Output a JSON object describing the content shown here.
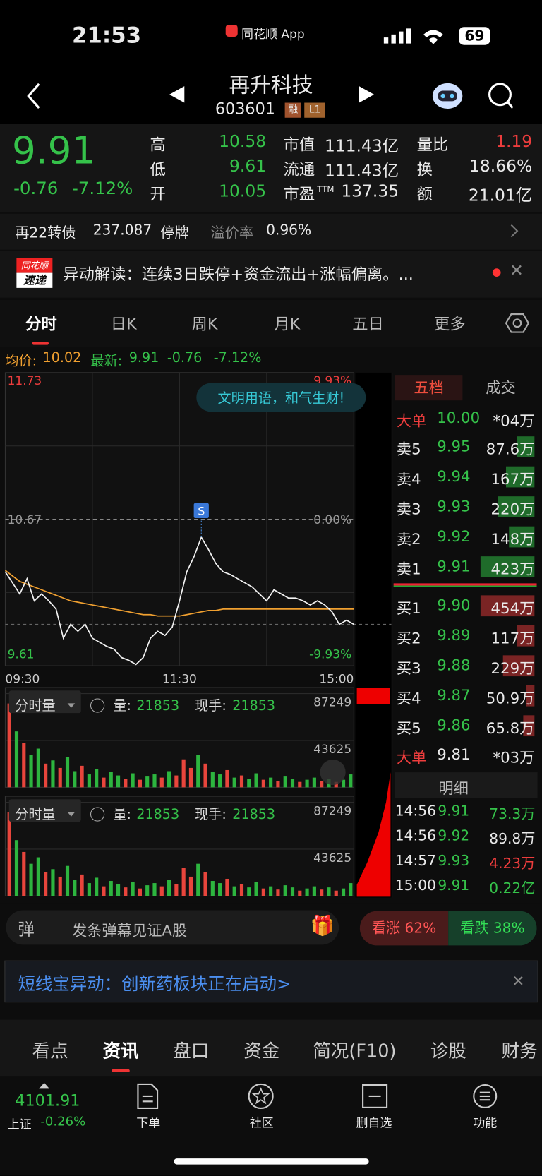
{
  "status": {
    "time": "21:53",
    "app": "同花顺 App",
    "battery": "69"
  },
  "header": {
    "name": "再升科技",
    "code": "603601",
    "badges": [
      "融",
      "L1"
    ]
  },
  "quote": {
    "price": "9.91",
    "change": "-0.76",
    "pct": "-7.12%",
    "ttm": "TTM",
    "stats": [
      [
        "高",
        "10.58"
      ],
      [
        "低",
        "9.61"
      ],
      [
        "开",
        "10.05"
      ],
      [
        "市值",
        "111.43亿"
      ],
      [
        "流通",
        "111.43亿"
      ],
      [
        "市盈",
        "137.35"
      ],
      [
        "量比",
        "1.19"
      ],
      [
        "换",
        "18.66%"
      ],
      [
        "额",
        "21.01亿"
      ]
    ]
  },
  "bond": {
    "name": "再22转债",
    "price": "237.087",
    "status": "停牌",
    "premium_label": "溢价率",
    "premium": "0.96%"
  },
  "alert": {
    "badge_top": "同花顺",
    "badge_bottom": "速递",
    "text": "异动解读：连续3日跌停+资金流出+涨幅偏离。..."
  },
  "tabs": [
    "分时",
    "日K",
    "周K",
    "月K",
    "五日",
    "更多"
  ],
  "info": {
    "avg_label": "均价:",
    "avg": "10.02",
    "last_label": "最新:",
    "last": "9.91",
    "change": "-0.76",
    "pct": "-7.12%"
  },
  "chart_data": [
    {
      "type": "line",
      "x": [
        0,
        5,
        10,
        15,
        20,
        25,
        30,
        35,
        40,
        45,
        50,
        55,
        60,
        65,
        70,
        75,
        80,
        85,
        90,
        95,
        100,
        105,
        110,
        115,
        120,
        125,
        130,
        135,
        140,
        145,
        150,
        155,
        160,
        165,
        170,
        175,
        180,
        185,
        190,
        195,
        200,
        205,
        210,
        215,
        220,
        225,
        230,
        235,
        240
      ],
      "xlim": [
        0,
        240
      ],
      "xticks": [
        {
          "value": 0,
          "label": "09:30"
        },
        {
          "value": 120,
          "label": "11:30"
        },
        {
          "value": 240,
          "label": "15:00"
        }
      ],
      "ylim": [
        9.61,
        11.73
      ],
      "yticks": [
        9.61,
        10.67,
        11.73
      ],
      "y2lim": [
        -9.93,
        9.93
      ],
      "y2ticks": [
        {
          "value": -9.93,
          "label": "-9.93%"
        },
        {
          "value": 0,
          "label": "0.00%"
        },
        {
          "value": 9.93,
          "label": "9.93%"
        }
      ],
      "series": [
        {
          "color": "#f2f2f2",
          "values": [
            10.29,
            10.21,
            10.13,
            10.24,
            10.08,
            10.13,
            10.08,
            10.02,
            9.81,
            9.91,
            9.86,
            9.91,
            9.81,
            9.78,
            9.75,
            9.73,
            9.67,
            9.65,
            9.62,
            9.67,
            9.81,
            9.86,
            9.83,
            9.89,
            10.08,
            10.29,
            10.4,
            10.54,
            10.45,
            10.35,
            10.29,
            10.27,
            10.24,
            10.21,
            10.18,
            10.13,
            10.08,
            10.16,
            10.13,
            10.1,
            10.1,
            10.08,
            10.05,
            10.08,
            10.05,
            10.0,
            9.91,
            9.94,
            9.91
          ]
        },
        {
          "color": "#f0a030",
          "values": [
            10.3,
            10.26,
            10.22,
            10.2,
            10.18,
            10.16,
            10.14,
            10.12,
            10.1,
            10.08,
            10.07,
            10.06,
            10.05,
            10.04,
            10.03,
            10.02,
            10.01,
            10.0,
            9.99,
            9.98,
            9.98,
            9.97,
            9.97,
            9.97,
            9.97,
            9.98,
            9.99,
            10.0,
            10.01,
            10.01,
            10.02,
            10.02,
            10.02,
            10.02,
            10.02,
            10.02,
            10.02,
            10.02,
            10.02,
            10.02,
            10.02,
            10.02,
            10.02,
            10.02,
            10.02,
            10.02,
            10.02,
            10.02,
            10.02
          ]
        }
      ],
      "annotations": [
        {
          "x": 135,
          "text": "S"
        }
      ],
      "bubble": "文明用语，和气生财!"
    },
    {
      "type": "bar",
      "title": "分时量",
      "vol_label": "量:",
      "vol": "21853",
      "hand_label": "现手:",
      "hand": "21853",
      "x": [
        0,
        5,
        10,
        15,
        20,
        25,
        30,
        35,
        40,
        45,
        50,
        55,
        60,
        65,
        70,
        75,
        80,
        85,
        90,
        95,
        100,
        105,
        110,
        115,
        120,
        125,
        130,
        135,
        140,
        145,
        150,
        155,
        160,
        165,
        170,
        175,
        180,
        185,
        190,
        195,
        200,
        205,
        210,
        215,
        220,
        225,
        230,
        235
      ],
      "xlim": [
        0,
        240
      ],
      "ylim": [
        0,
        87249
      ],
      "yticks": [
        43625,
        87249
      ],
      "up_color": "#e8453c",
      "down_color": "#2db53f",
      "rising": [
        true,
        false,
        true,
        false,
        false,
        true,
        false,
        true,
        false,
        false,
        true,
        false,
        false,
        true,
        false,
        false,
        true,
        false,
        true,
        false,
        false,
        true,
        false,
        true,
        true,
        true,
        false,
        true,
        false,
        false,
        true,
        false,
        true,
        false,
        false,
        true,
        false,
        true,
        false,
        false,
        true,
        false,
        false,
        true,
        false,
        true,
        false,
        false
      ],
      "values": [
        78000,
        52000,
        41000,
        30000,
        36000,
        22000,
        25000,
        18000,
        28000,
        15000,
        20000,
        12000,
        17000,
        9000,
        14000,
        11000,
        8000,
        13000,
        7000,
        10000,
        12000,
        9000,
        15000,
        11000,
        26000,
        18000,
        30000,
        22000,
        14000,
        12000,
        16000,
        9000,
        11000,
        8000,
        13000,
        7000,
        9000,
        6000,
        10000,
        8000,
        5000,
        7000,
        9000,
        6000,
        8000,
        5000,
        7000,
        12000
      ]
    }
  ],
  "book": {
    "tabs": [
      "五档",
      "成交"
    ],
    "rows": [
      [
        "大单",
        "10.00",
        "*04万"
      ],
      [
        "卖5",
        "9.95",
        "87.6万"
      ],
      [
        "卖4",
        "9.94",
        "167万"
      ],
      [
        "卖3",
        "9.93",
        "220万"
      ],
      [
        "卖2",
        "9.92",
        "148万"
      ],
      [
        "卖1",
        "9.91",
        "423万"
      ],
      [
        "买1",
        "9.90",
        "454万"
      ],
      [
        "买2",
        "9.89",
        "117万"
      ],
      [
        "买3",
        "9.88",
        "229万"
      ],
      [
        "买4",
        "9.87",
        "50.9万"
      ],
      [
        "买5",
        "9.86",
        "65.8万"
      ],
      [
        "大单",
        "9.81",
        "*03万"
      ]
    ],
    "detail": "明细",
    "trades": [
      [
        "14:56",
        "9.91",
        "73.3万"
      ],
      [
        "14:56",
        "9.92",
        "89.8万"
      ],
      [
        "14:57",
        "9.93",
        "4.23万"
      ],
      [
        "15:00",
        "9.91",
        "0.22亿"
      ]
    ]
  },
  "social": {
    "icon": "弹",
    "input": "发条弹幕见证A股",
    "bull": "看涨 62%",
    "bear": "看跌 38%"
  },
  "banner": "短线宝异动：创新药板块正在启动>",
  "sections": [
    "看点",
    "资讯",
    "盘口",
    "资金",
    "简况(F10)",
    "诊股",
    "财务"
  ],
  "footer": {
    "index": "4101.91",
    "index_name": "上证",
    "index_change": "-0.26%",
    "items": [
      "下单",
      "社区",
      "删自选",
      "功能"
    ]
  }
}
